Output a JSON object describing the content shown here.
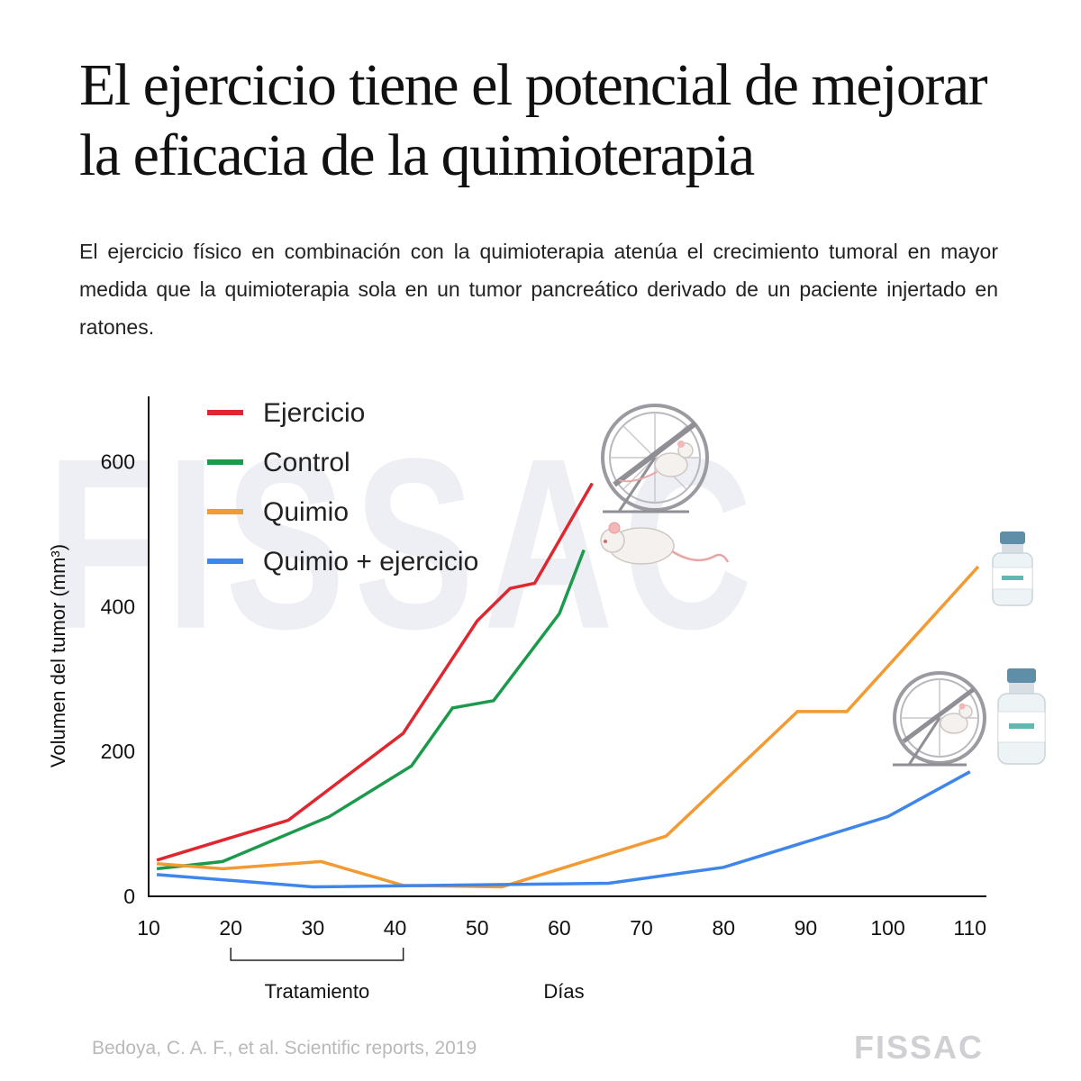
{
  "header": {
    "title": "El ejercicio tiene el potencial de mejorar la eficacia de la quimioterapia",
    "subtitle": "El ejercicio físico en combinación con la quimioterapia atenúa el crecimiento tumoral en mayor medida que la quimioterapia sola en un tumor pancreático derivado de un paciente injertado en ratones."
  },
  "watermark": "FISSAC",
  "footer": {
    "source": "Bedoya, C. A. F., et al. Scientific reports, 2019",
    "logo": "FISSAC"
  },
  "colors": {
    "ejercicio": "#e0262e",
    "control": "#1a9a4a",
    "quimio": "#f39a32",
    "quimio_ejercicio": "#3f86ec"
  },
  "chart_data": {
    "type": "line",
    "title": "",
    "xlabel": "Días",
    "ylabel": "Volumen del tumor (mm³)",
    "xlim": [
      10,
      112
    ],
    "ylim": [
      0,
      690
    ],
    "xticks": [
      10,
      20,
      30,
      40,
      50,
      60,
      70,
      80,
      90,
      100,
      110
    ],
    "yticks": [
      0,
      200,
      400,
      600
    ],
    "treatment_bracket": {
      "label": "Tratamiento",
      "from": 20,
      "to": 41
    },
    "legend_position": "top-left",
    "series": [
      {
        "name": "Ejercicio",
        "color": "#e0262e",
        "x": [
          11,
          27,
          41,
          50,
          54,
          57,
          64
        ],
        "y": [
          50,
          105,
          225,
          380,
          425,
          432,
          570
        ]
      },
      {
        "name": "Control",
        "color": "#1a9a4a",
        "x": [
          11,
          19,
          32,
          42,
          47,
          52,
          60,
          63
        ],
        "y": [
          38,
          48,
          110,
          180,
          260,
          270,
          390,
          478
        ]
      },
      {
        "name": "Quimio",
        "color": "#f39a32",
        "x": [
          11,
          19,
          31,
          41,
          53,
          73,
          89,
          95,
          111
        ],
        "y": [
          45,
          38,
          48,
          15,
          13,
          83,
          255,
          255,
          455
        ]
      },
      {
        "name": "Quimio + ejercicio",
        "color": "#3f86ec",
        "x": [
          11,
          30,
          66,
          80,
          100,
          110
        ],
        "y": [
          30,
          13,
          18,
          40,
          110,
          172
        ]
      }
    ]
  }
}
